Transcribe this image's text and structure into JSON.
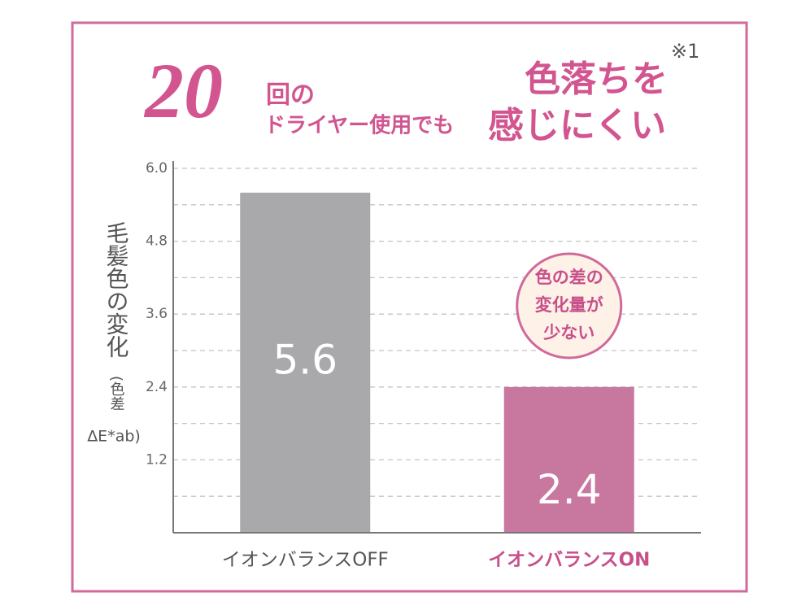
{
  "chart_data": {
    "type": "bar",
    "title_parts": {
      "number": "20",
      "line1": "回の",
      "line2": "ドライヤー使用でも",
      "right1": "色落ちを",
      "right2": "感じにくい",
      "footnote": "※1"
    },
    "ylabel": "毛髪色の変化",
    "ylabel_note": "(色差",
    "ylabel_note2": "ΔE*ab)",
    "categories": [
      "イオンバランスOFF",
      "イオンバランスON"
    ],
    "category_colors": [
      "#555555",
      "#c8508a"
    ],
    "values": [
      5.6,
      2.4
    ],
    "colors": [
      "#a9a9ab",
      "#c8779f"
    ],
    "ylim": [
      0,
      6
    ],
    "yticks": [
      {
        "value": 6,
        "label": "6.0"
      },
      4.8,
      3.6,
      2.4,
      1.2
    ],
    "minor_yticks": [
      0.6,
      1.8,
      3.0,
      4.2,
      5.4
    ],
    "grid": true,
    "annotation": [
      "色の差の",
      "変化量が",
      "少ない"
    ]
  }
}
